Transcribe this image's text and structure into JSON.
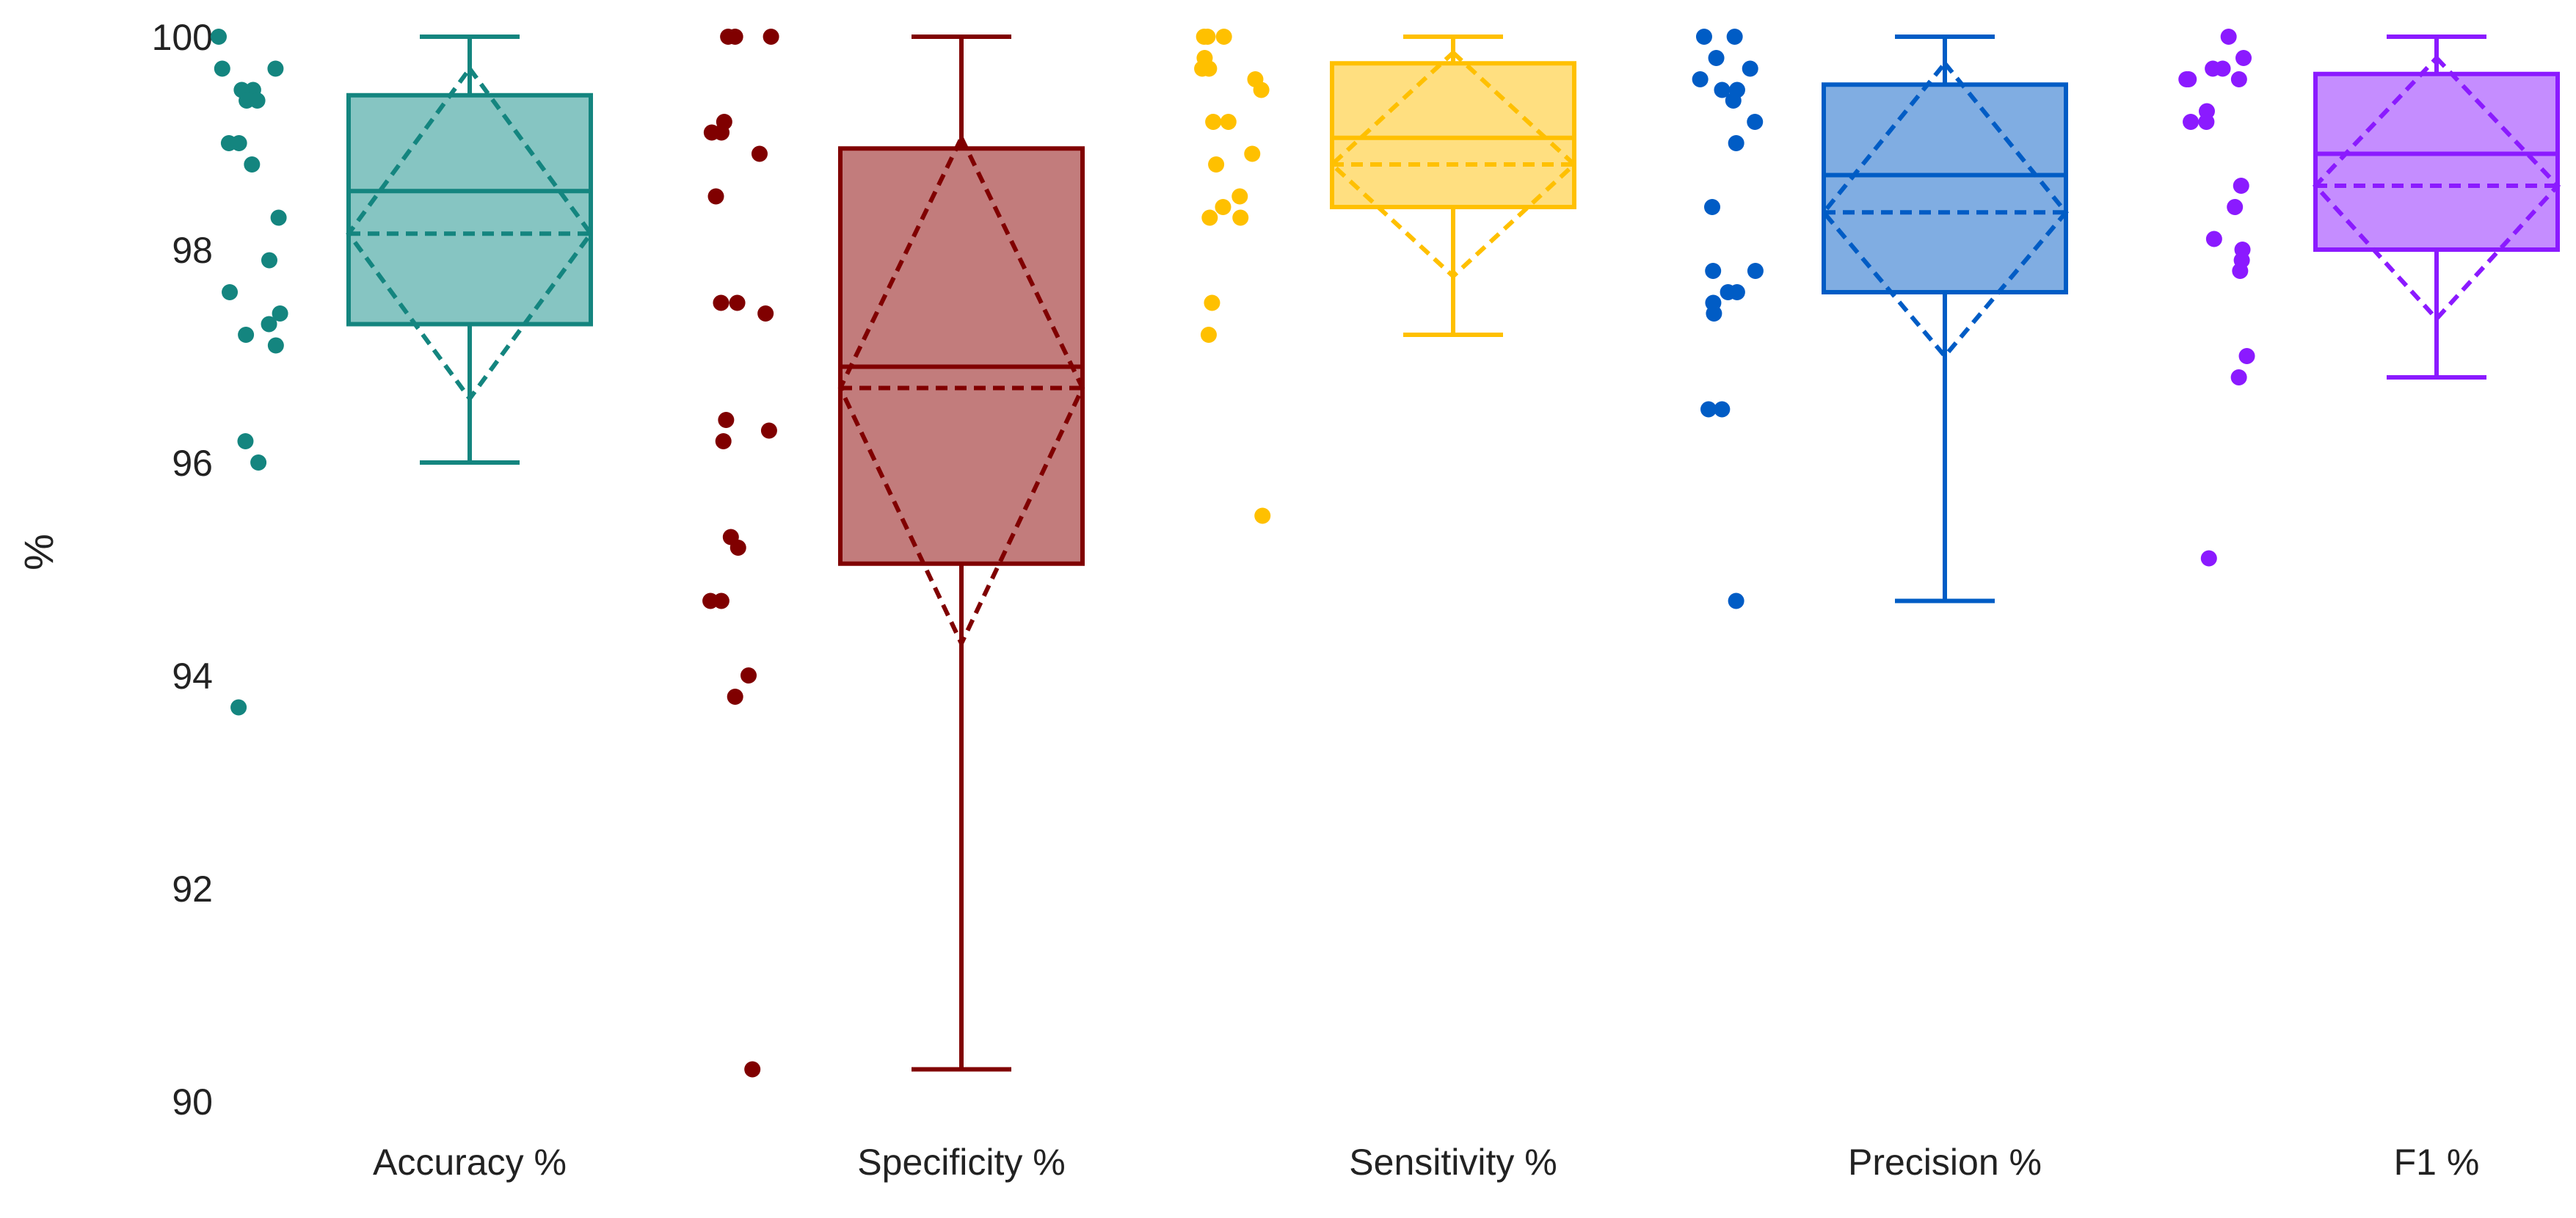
{
  "chart_data": {
    "type": "box",
    "title": "",
    "xlabel": "",
    "ylabel": "%",
    "ylim": [
      90,
      100
    ],
    "yticks": [
      90,
      92,
      94,
      96,
      98,
      100
    ],
    "grid": false,
    "legend": "none",
    "categories": [
      "Accuracy %",
      "Specificity %",
      "Sensitivity %",
      "Precision %",
      "F1 %"
    ],
    "series": [
      {
        "category": "Accuracy %",
        "color": "#14857f",
        "fill": "#86c5c2",
        "min": 96.0,
        "q1": 97.3,
        "median": 98.55,
        "q3": 99.45,
        "max": 100.0,
        "mean": 98.15,
        "sd_low": 96.6,
        "sd_high": 99.7,
        "points": [
          100.0,
          99.7,
          99.7,
          99.5,
          99.5,
          99.4,
          99.4,
          99.0,
          99.0,
          98.8,
          98.3,
          97.9,
          97.6,
          97.4,
          97.3,
          97.2,
          97.1,
          96.2,
          96.0,
          93.7
        ]
      },
      {
        "category": "Specificity %",
        "color": "#800000",
        "fill": "#c27c7c",
        "min": 90.3,
        "q1": 95.05,
        "median": 96.9,
        "q3": 98.95,
        "max": 100.0,
        "mean": 96.7,
        "sd_low": 94.3,
        "sd_high": 99.05,
        "points": [
          100.0,
          100.0,
          100.0,
          99.2,
          99.1,
          99.1,
          98.9,
          98.5,
          97.5,
          97.5,
          97.4,
          96.4,
          96.3,
          96.2,
          95.3,
          95.2,
          94.7,
          94.7,
          94.0,
          93.8,
          90.3
        ]
      },
      {
        "category": "Sensitivity %",
        "color": "#ffc000",
        "fill": "#ffdf80",
        "min": 97.2,
        "q1": 98.4,
        "median": 99.05,
        "q3": 99.75,
        "max": 100.0,
        "mean": 98.8,
        "sd_low": 97.75,
        "sd_high": 99.85,
        "points": [
          100.0,
          100.0,
          100.0,
          99.8,
          99.7,
          99.7,
          99.6,
          99.5,
          99.2,
          99.2,
          98.9,
          98.8,
          98.5,
          98.4,
          98.3,
          98.3,
          97.5,
          97.2,
          95.5
        ]
      },
      {
        "category": "Precision %",
        "color": "#005cc5",
        "fill": "#80ade2",
        "min": 94.7,
        "q1": 97.6,
        "median": 98.7,
        "q3": 99.55,
        "max": 100.0,
        "mean": 98.35,
        "sd_low": 97.0,
        "sd_high": 99.75,
        "points": [
          100.0,
          100.0,
          99.8,
          99.7,
          99.6,
          99.5,
          99.5,
          99.4,
          99.2,
          99.0,
          98.4,
          97.8,
          97.8,
          97.6,
          97.6,
          97.5,
          97.4,
          96.5,
          96.5,
          94.7
        ]
      },
      {
        "category": "F1 %",
        "color": "#8b1aff",
        "fill": "#c58dff",
        "min": 96.8,
        "q1": 98.0,
        "median": 98.9,
        "q3": 99.65,
        "max": 100.0,
        "mean": 98.6,
        "sd_low": 97.35,
        "sd_high": 99.8,
        "points": [
          100.0,
          99.8,
          99.7,
          99.7,
          99.6,
          99.6,
          99.6,
          99.3,
          99.2,
          99.2,
          98.6,
          98.4,
          98.1,
          98.0,
          97.9,
          97.8,
          97.0,
          96.8,
          95.1
        ]
      }
    ]
  }
}
